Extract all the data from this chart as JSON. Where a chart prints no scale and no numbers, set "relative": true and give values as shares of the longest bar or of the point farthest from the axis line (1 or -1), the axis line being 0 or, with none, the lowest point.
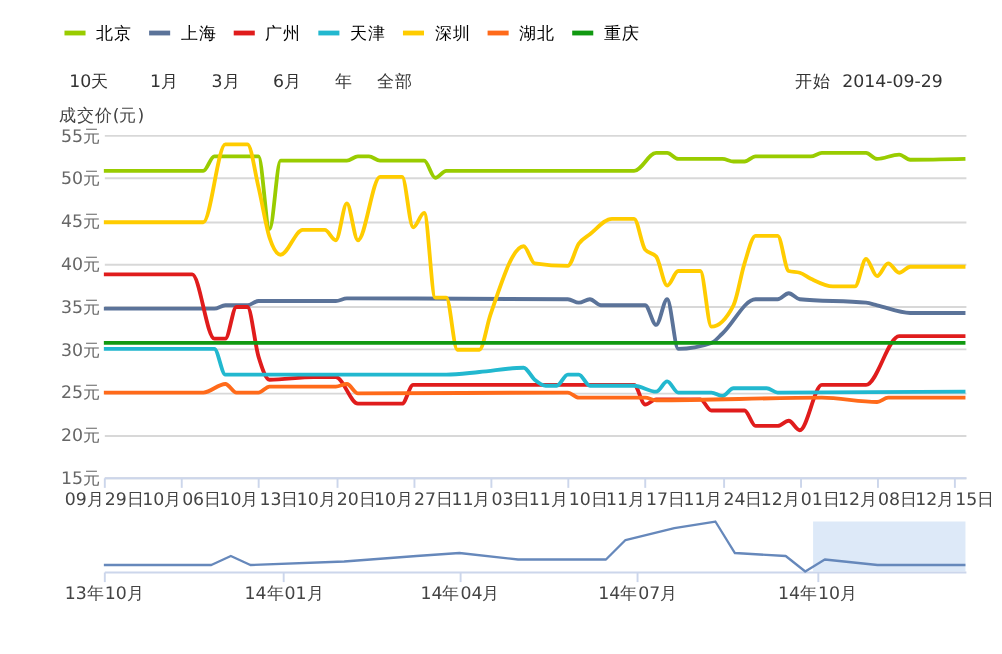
{
  "chart_data": [
    {
      "type": "line",
      "ylabel": "成交价(元)",
      "legend": "top left",
      "grid": "y",
      "annotations": [
        "10天",
        "1月",
        "3月",
        "6月",
        "年",
        "全部",
        "开始",
        "2014-09-29"
      ],
      "xlim": [
        "2014-09-29",
        "2014-12-16"
      ],
      "xticks": [
        {
          "value": "2014-09-29",
          "label": "09月29日"
        },
        {
          "value": "2014-10-06",
          "label": "10月06日"
        },
        {
          "value": "2014-10-13",
          "label": "10月13日"
        },
        {
          "value": "2014-10-20",
          "label": "10月20日"
        },
        {
          "value": "2014-10-27",
          "label": "10月27日"
        },
        {
          "value": "2014-11-03",
          "label": "11月03日"
        },
        {
          "value": "2014-11-10",
          "label": "11月10日"
        },
        {
          "value": "2014-11-17",
          "label": "11月17日"
        },
        {
          "value": "2014-11-24",
          "label": "11月24日"
        },
        {
          "value": "2014-12-01",
          "label": "12月01日"
        },
        {
          "value": "2014-12-08",
          "label": "12月08日"
        },
        {
          "value": "2014-12-15",
          "label": "12月15日"
        }
      ],
      "ylim": [
        15,
        55
      ],
      "yticks": [
        {
          "value": 15,
          "label": "15元"
        },
        {
          "value": 20,
          "label": "20元"
        },
        {
          "value": 25,
          "label": "25元"
        },
        {
          "value": 30,
          "label": "30元"
        },
        {
          "value": 35,
          "label": "35元"
        },
        {
          "value": 40,
          "label": "40元"
        },
        {
          "value": 45,
          "label": "45元"
        },
        {
          "value": 50,
          "label": "50元"
        },
        {
          "value": 55,
          "label": "55元"
        }
      ],
      "series": [
        {
          "name": "北京",
          "color": "#99cc00",
          "x": [
            "2014-09-29",
            "2014-10-08",
            "2014-10-09",
            "2014-10-13",
            "2014-10-14",
            "2014-10-15",
            "2014-10-21",
            "2014-10-22",
            "2014-10-23",
            "2014-10-24",
            "2014-10-28",
            "2014-10-29",
            "2014-10-30",
            "2014-11-16",
            "2014-11-18",
            "2014-11-19",
            "2014-11-20",
            "2014-11-24",
            "2014-11-25",
            "2014-11-26",
            "2014-11-27",
            "2014-12-02",
            "2014-12-03",
            "2014-12-07",
            "2014-12-08",
            "2014-12-10",
            "2014-12-11",
            "2014-12-16"
          ],
          "values": [
            50.8,
            50.8,
            52.5,
            52.5,
            44,
            52,
            52,
            52.5,
            52.5,
            52,
            52,
            50,
            50.8,
            50.8,
            52.9,
            52.9,
            52.2,
            52.2,
            51.9,
            51.9,
            52.5,
            52.5,
            52.9,
            52.9,
            52.2,
            52.7,
            52.1,
            52.2
          ]
        },
        {
          "name": "上海",
          "color": "#5b7399",
          "x": [
            "2014-09-29",
            "2014-10-09",
            "2014-10-10",
            "2014-10-12",
            "2014-10-13",
            "2014-10-20",
            "2014-10-21",
            "2014-11-10",
            "2014-11-11",
            "2014-11-12",
            "2014-11-13",
            "2014-11-17",
            "2014-11-18",
            "2014-11-19",
            "2014-11-20",
            "2014-11-23",
            "2014-11-24",
            "2014-11-27",
            "2014-11-29",
            "2014-11-30",
            "2014-12-01",
            "2014-12-07",
            "2014-12-08",
            "2014-12-11",
            "2014-12-16"
          ],
          "values": [
            34.7,
            34.7,
            35.1,
            35.1,
            35.6,
            35.6,
            35.9,
            35.8,
            35.4,
            35.8,
            35.1,
            35.1,
            32.8,
            35.8,
            30,
            30.7,
            31.8,
            35.8,
            35.8,
            36.5,
            35.8,
            35.4,
            35.1,
            34.2,
            34.2
          ]
        },
        {
          "name": "广州",
          "color": "#e01c1c",
          "x": [
            "2014-09-29",
            "2014-10-07",
            "2014-10-09",
            "2014-10-10",
            "2014-10-11",
            "2014-10-12",
            "2014-10-13",
            "2014-10-14",
            "2014-10-18",
            "2014-10-20",
            "2014-10-22",
            "2014-10-26",
            "2014-10-27",
            "2014-11-16",
            "2014-11-17",
            "2014-11-18",
            "2014-11-22",
            "2014-11-23",
            "2014-11-26",
            "2014-11-27",
            "2014-11-29",
            "2014-11-30",
            "2014-12-01",
            "2014-12-03",
            "2014-12-07",
            "2014-12-10",
            "2014-12-16"
          ],
          "values": [
            38.7,
            38.7,
            31.2,
            31.2,
            34.9,
            34.9,
            29.1,
            26.4,
            26.7,
            26.7,
            23.6,
            23.6,
            25.8,
            25.8,
            23.5,
            24.1,
            24.1,
            22.8,
            22.8,
            21,
            21,
            21.6,
            20.5,
            25.8,
            25.8,
            31.5,
            31.5
          ]
        },
        {
          "name": "天津",
          "color": "#22b8cf",
          "x": [
            "2014-09-29",
            "2014-10-09",
            "2014-10-10",
            "2014-10-30",
            "2014-11-02",
            "2014-11-06",
            "2014-11-07",
            "2014-11-08",
            "2014-11-09",
            "2014-11-10",
            "2014-11-11",
            "2014-11-12",
            "2014-11-16",
            "2014-11-18",
            "2014-11-19",
            "2014-11-20",
            "2014-11-23",
            "2014-11-24",
            "2014-11-25",
            "2014-11-28",
            "2014-11-29",
            "2014-12-16"
          ],
          "values": [
            30,
            30,
            27,
            27,
            27.3,
            27.8,
            26.4,
            25.7,
            25.7,
            27,
            27,
            25.7,
            25.7,
            25,
            26.2,
            24.9,
            24.9,
            24.5,
            25.4,
            25.4,
            24.9,
            25
          ]
        },
        {
          "name": "深圳",
          "color": "#ffcc00",
          "x": [
            "2014-09-29",
            "2014-10-08",
            "2014-10-10",
            "2014-10-12",
            "2014-10-13",
            "2014-10-14",
            "2014-10-15",
            "2014-10-17",
            "2014-10-19",
            "2014-10-20",
            "2014-10-21",
            "2014-10-22",
            "2014-10-24",
            "2014-10-26",
            "2014-10-27",
            "2014-10-28",
            "2014-10-29",
            "2014-10-30",
            "2014-10-31",
            "2014-11-02",
            "2014-11-03",
            "2014-11-06",
            "2014-11-07",
            "2014-11-10",
            "2014-11-11",
            "2014-11-12",
            "2014-11-14",
            "2014-11-16",
            "2014-11-17",
            "2014-11-18",
            "2014-11-19",
            "2014-11-20",
            "2014-11-22",
            "2014-11-23",
            "2014-11-25",
            "2014-11-26",
            "2014-11-27",
            "2014-11-29",
            "2014-11-30",
            "2014-12-01",
            "2014-12-02",
            "2014-12-04",
            "2014-12-06",
            "2014-12-07",
            "2014-12-08",
            "2014-12-09",
            "2014-12-10",
            "2014-12-11",
            "2014-12-16"
          ],
          "values": [
            44.8,
            44.8,
            53.9,
            53.9,
            48.9,
            43,
            41,
            43.9,
            43.9,
            42.7,
            47,
            42.7,
            50.1,
            50.1,
            44.2,
            45.9,
            36,
            36,
            29.9,
            29.9,
            34,
            42,
            40,
            39.7,
            42.3,
            43.4,
            45.2,
            45.2,
            41.6,
            40.8,
            37.4,
            39.1,
            39.1,
            32.6,
            35.1,
            40,
            43.2,
            43.2,
            39.1,
            38.9,
            38.2,
            37.3,
            37.3,
            40.5,
            38.5,
            40,
            38.9,
            39.6,
            39.6
          ]
        },
        {
          "name": "湖北",
          "color": "#ff6a1a",
          "x": [
            "2014-09-29",
            "2014-10-08",
            "2014-10-10",
            "2014-10-11",
            "2014-10-13",
            "2014-10-14",
            "2014-10-20",
            "2014-10-21",
            "2014-10-22",
            "2014-11-10",
            "2014-11-11",
            "2014-11-17",
            "2014-11-18",
            "2014-12-03",
            "2014-12-08",
            "2014-12-09",
            "2014-12-16"
          ],
          "values": [
            24.9,
            24.9,
            25.9,
            24.9,
            24.9,
            25.6,
            25.6,
            25.9,
            24.8,
            24.9,
            24.3,
            24.3,
            24,
            24.3,
            23.8,
            24.3,
            24.3
          ]
        },
        {
          "name": "重庆",
          "color": "#119911",
          "x": [
            "2014-09-29",
            "2014-12-16"
          ],
          "values": [
            30.7,
            30.7
          ]
        }
      ]
    },
    {
      "type": "line",
      "relative": true,
      "tick_labels": "x",
      "color": "#6688bb",
      "xlim": [
        "2013-10-01",
        "2014-12-16"
      ],
      "xticks": [
        {
          "value": "2013-10-01",
          "label": "13年10月"
        },
        {
          "value": "2014-01-01",
          "label": "14年01月"
        },
        {
          "value": "2014-04-01",
          "label": "14年04月"
        },
        {
          "value": "2014-07-01",
          "label": "14年07月"
        },
        {
          "value": "2014-10-01",
          "label": "14年10月"
        }
      ],
      "bands": [
        {
          "axis": "x",
          "from": "2014-09-29",
          "to": "2014-12-16",
          "color": "#cfe0f5"
        }
      ],
      "x": [
        "2013-10-01",
        "2013-11-25",
        "2013-12-05",
        "2013-12-15",
        "2014-02-01",
        "2014-03-10",
        "2014-04-01",
        "2014-05-01",
        "2014-06-15",
        "2014-06-25",
        "2014-07-20",
        "2014-08-10",
        "2014-08-20",
        "2014-09-15",
        "2014-09-25",
        "2014-10-05",
        "2014-11-01",
        "2014-12-16"
      ],
      "values": [
        0.13,
        0.13,
        0.31,
        0.13,
        0.2,
        0.31,
        0.37,
        0.24,
        0.24,
        0.63,
        0.87,
        1,
        0.37,
        0.31,
        0,
        0.24,
        0.13,
        0.13
      ]
    }
  ]
}
